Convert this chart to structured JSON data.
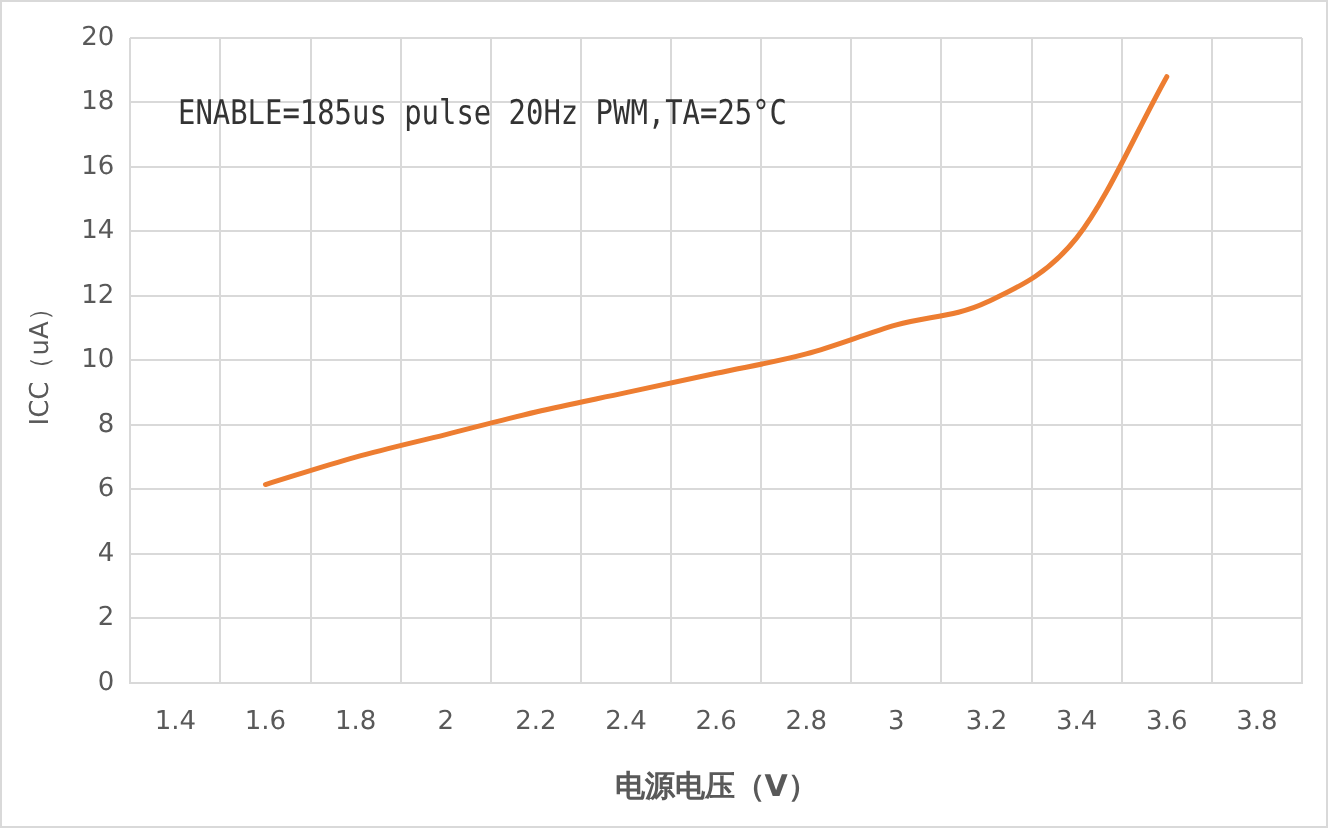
{
  "chart_data": {
    "type": "line",
    "xlabel": "电源电压（V）",
    "ylabel": "ICC（uA）",
    "annotations": [
      "ENABLE=185us pulse 20Hz PWM,TA=25°C"
    ],
    "categories": [
      "1.4",
      "1.6",
      "1.8",
      "2",
      "2.2",
      "2.4",
      "2.6",
      "2.8",
      "3",
      "3.2",
      "3.4",
      "3.6",
      "3.8"
    ],
    "series": [
      {
        "color": "#ed7d31",
        "values": [
          null,
          6.15,
          7.0,
          7.7,
          8.4,
          9.0,
          9.6,
          10.2,
          11.1,
          11.8,
          13.8,
          18.8,
          null
        ]
      }
    ],
    "ylim": [
      0,
      20
    ],
    "yticks": [
      0,
      2,
      4,
      6,
      8,
      10,
      12,
      14,
      16,
      18,
      20
    ],
    "grid": true,
    "legend": false,
    "marker": "none",
    "line_style": "solid"
  }
}
